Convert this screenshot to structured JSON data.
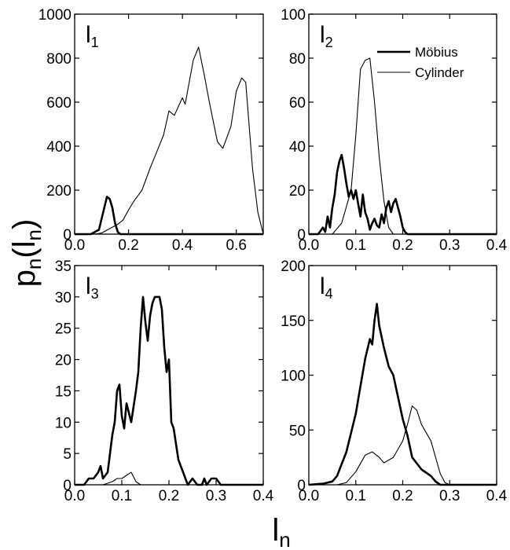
{
  "chart_data": [
    {
      "type": "line",
      "panel": "I1",
      "label_main": "l",
      "label_sub": "1",
      "xlim": [
        0.0,
        0.7
      ],
      "ylim": [
        0,
        1000
      ],
      "xticks": [
        "0.0",
        "0.2",
        "0.4",
        "0.6"
      ],
      "xtick_values": [
        0.0,
        0.2,
        0.4,
        0.6
      ],
      "yticks": [
        "0",
        "200",
        "400",
        "600",
        "800",
        "1000"
      ],
      "ytick_values": [
        0,
        200,
        400,
        600,
        800,
        1000
      ],
      "series": [
        {
          "name": "Möbius",
          "points": [
            [
              0,
              0
            ],
            [
              0.06,
              0
            ],
            [
              0.09,
              20
            ],
            [
              0.11,
              120
            ],
            [
              0.12,
              170
            ],
            [
              0.13,
              160
            ],
            [
              0.14,
              120
            ],
            [
              0.15,
              50
            ],
            [
              0.16,
              10
            ],
            [
              0.17,
              0
            ],
            [
              0.7,
              0
            ]
          ]
        },
        {
          "name": "Cylinder",
          "points": [
            [
              0,
              0
            ],
            [
              0.07,
              0
            ],
            [
              0.1,
              5
            ],
            [
              0.13,
              25
            ],
            [
              0.16,
              45
            ],
            [
              0.18,
              65
            ],
            [
              0.2,
              110
            ],
            [
              0.22,
              150
            ],
            [
              0.25,
              200
            ],
            [
              0.28,
              300
            ],
            [
              0.3,
              360
            ],
            [
              0.33,
              450
            ],
            [
              0.35,
              560
            ],
            [
              0.37,
              540
            ],
            [
              0.4,
              620
            ],
            [
              0.41,
              590
            ],
            [
              0.44,
              790
            ],
            [
              0.46,
              850
            ],
            [
              0.48,
              730
            ],
            [
              0.5,
              600
            ],
            [
              0.53,
              420
            ],
            [
              0.55,
              390
            ],
            [
              0.58,
              490
            ],
            [
              0.6,
              650
            ],
            [
              0.62,
              710
            ],
            [
              0.635,
              690
            ],
            [
              0.66,
              300
            ],
            [
              0.68,
              100
            ],
            [
              0.7,
              0
            ]
          ]
        }
      ]
    },
    {
      "type": "line",
      "panel": "I2",
      "label_main": "l",
      "label_sub": "2",
      "xlim": [
        0.0,
        0.4
      ],
      "ylim": [
        0,
        100
      ],
      "xticks": [
        "0.0",
        "0.1",
        "0.2",
        "0.3",
        "0.4"
      ],
      "xtick_values": [
        0.0,
        0.1,
        0.2,
        0.3,
        0.4
      ],
      "yticks": [
        "0",
        "20",
        "40",
        "60",
        "80",
        "100"
      ],
      "ytick_values": [
        0,
        20,
        40,
        60,
        80,
        100
      ],
      "legend": [
        {
          "label": "Möbius",
          "weight": "thick"
        },
        {
          "label": "Cylinder",
          "weight": "thin"
        }
      ],
      "series": [
        {
          "name": "Möbius",
          "points": [
            [
              0,
              0
            ],
            [
              0.02,
              0
            ],
            [
              0.03,
              3
            ],
            [
              0.035,
              1
            ],
            [
              0.04,
              8
            ],
            [
              0.045,
              3
            ],
            [
              0.05,
              12
            ],
            [
              0.055,
              18
            ],
            [
              0.06,
              28
            ],
            [
              0.065,
              33
            ],
            [
              0.07,
              36
            ],
            [
              0.075,
              30
            ],
            [
              0.08,
              23
            ],
            [
              0.085,
              17
            ],
            [
              0.09,
              20
            ],
            [
              0.095,
              16
            ],
            [
              0.1,
              20
            ],
            [
              0.105,
              14
            ],
            [
              0.11,
              8
            ],
            [
              0.115,
              18
            ],
            [
              0.12,
              10
            ],
            [
              0.125,
              7
            ],
            [
              0.13,
              2
            ],
            [
              0.135,
              5
            ],
            [
              0.14,
              7
            ],
            [
              0.145,
              4
            ],
            [
              0.15,
              3
            ],
            [
              0.155,
              9
            ],
            [
              0.16,
              5
            ],
            [
              0.165,
              12
            ],
            [
              0.17,
              15
            ],
            [
              0.175,
              10
            ],
            [
              0.18,
              14
            ],
            [
              0.185,
              16
            ],
            [
              0.19,
              12
            ],
            [
              0.195,
              8
            ],
            [
              0.2,
              3
            ],
            [
              0.205,
              1
            ],
            [
              0.21,
              0
            ],
            [
              0.4,
              0
            ]
          ]
        },
        {
          "name": "Cylinder",
          "points": [
            [
              0,
              0
            ],
            [
              0.05,
              0
            ],
            [
              0.07,
              5
            ],
            [
              0.09,
              20
            ],
            [
              0.1,
              45
            ],
            [
              0.11,
              75
            ],
            [
              0.12,
              79
            ],
            [
              0.13,
              80
            ],
            [
              0.14,
              60
            ],
            [
              0.15,
              35
            ],
            [
              0.16,
              15
            ],
            [
              0.17,
              3
            ],
            [
              0.18,
              0
            ],
            [
              0.4,
              0
            ]
          ]
        }
      ]
    },
    {
      "type": "line",
      "panel": "I3",
      "label_main": "l",
      "label_sub": "3",
      "xlim": [
        0.0,
        0.4
      ],
      "ylim": [
        0,
        35
      ],
      "xticks": [
        "0.0",
        "0.1",
        "0.2",
        "0.3",
        "0.4"
      ],
      "xtick_values": [
        0.0,
        0.1,
        0.2,
        0.3,
        0.4
      ],
      "yticks": [
        "0",
        "5",
        "10",
        "15",
        "20",
        "25",
        "30",
        "35"
      ],
      "ytick_values": [
        0,
        5,
        10,
        15,
        20,
        25,
        30,
        35
      ],
      "series": [
        {
          "name": "Möbius",
          "points": [
            [
              0,
              0
            ],
            [
              0.02,
              0
            ],
            [
              0.03,
              1
            ],
            [
              0.04,
              1
            ],
            [
              0.05,
              2
            ],
            [
              0.055,
              3
            ],
            [
              0.06,
              1
            ],
            [
              0.07,
              2
            ],
            [
              0.075,
              5
            ],
            [
              0.08,
              8
            ],
            [
              0.085,
              10
            ],
            [
              0.09,
              15
            ],
            [
              0.095,
              16
            ],
            [
              0.1,
              11
            ],
            [
              0.105,
              9
            ],
            [
              0.11,
              13
            ],
            [
              0.12,
              10
            ],
            [
              0.13,
              15
            ],
            [
              0.135,
              18
            ],
            [
              0.14,
              25
            ],
            [
              0.145,
              30
            ],
            [
              0.15,
              26
            ],
            [
              0.155,
              23
            ],
            [
              0.16,
              27
            ],
            [
              0.165,
              29
            ],
            [
              0.17,
              30
            ],
            [
              0.18,
              30
            ],
            [
              0.185,
              28
            ],
            [
              0.19,
              22
            ],
            [
              0.195,
              18
            ],
            [
              0.2,
              20
            ],
            [
              0.205,
              10
            ],
            [
              0.21,
              9
            ],
            [
              0.22,
              4
            ],
            [
              0.23,
              2
            ],
            [
              0.24,
              0
            ],
            [
              0.25,
              1
            ],
            [
              0.26,
              0
            ],
            [
              0.27,
              0
            ],
            [
              0.275,
              1
            ],
            [
              0.28,
              0
            ],
            [
              0.29,
              1
            ],
            [
              0.3,
              1
            ],
            [
              0.31,
              0
            ],
            [
              0.4,
              0
            ]
          ]
        },
        {
          "name": "Cylinder",
          "points": [
            [
              0,
              0
            ],
            [
              0.06,
              0
            ],
            [
              0.08,
              0.5
            ],
            [
              0.09,
              1
            ],
            [
              0.1,
              1
            ],
            [
              0.11,
              1.5
            ],
            [
              0.12,
              2
            ],
            [
              0.13,
              0.5
            ],
            [
              0.14,
              0
            ],
            [
              0.4,
              0
            ]
          ]
        }
      ]
    },
    {
      "type": "line",
      "panel": "I4",
      "label_main": "l",
      "label_sub": "4",
      "xlim": [
        0.0,
        0.4
      ],
      "ylim": [
        0,
        200
      ],
      "xticks": [
        "0.0",
        "0.1",
        "0.2",
        "0.3",
        "0.4"
      ],
      "xtick_values": [
        0.0,
        0.1,
        0.2,
        0.3,
        0.4
      ],
      "yticks": [
        "0",
        "50",
        "100",
        "150",
        "200"
      ],
      "ytick_values": [
        0,
        50,
        100,
        150,
        200
      ],
      "series": [
        {
          "name": "Möbius",
          "points": [
            [
              0,
              0
            ],
            [
              0.03,
              1
            ],
            [
              0.05,
              3
            ],
            [
              0.06,
              8
            ],
            [
              0.08,
              30
            ],
            [
              0.1,
              65
            ],
            [
              0.11,
              90
            ],
            [
              0.12,
              115
            ],
            [
              0.13,
              133
            ],
            [
              0.135,
              128
            ],
            [
              0.14,
              150
            ],
            [
              0.145,
              165
            ],
            [
              0.15,
              145
            ],
            [
              0.16,
              125
            ],
            [
              0.17,
              108
            ],
            [
              0.18,
              100
            ],
            [
              0.19,
              80
            ],
            [
              0.2,
              60
            ],
            [
              0.21,
              45
            ],
            [
              0.22,
              25
            ],
            [
              0.24,
              14
            ],
            [
              0.26,
              8
            ],
            [
              0.27,
              3
            ],
            [
              0.28,
              0
            ],
            [
              0.4,
              0
            ]
          ]
        },
        {
          "name": "Cylinder",
          "points": [
            [
              0,
              0
            ],
            [
              0.06,
              0
            ],
            [
              0.08,
              2
            ],
            [
              0.1,
              12
            ],
            [
              0.12,
              27
            ],
            [
              0.135,
              30
            ],
            [
              0.15,
              25
            ],
            [
              0.16,
              20
            ],
            [
              0.18,
              25
            ],
            [
              0.2,
              40
            ],
            [
              0.21,
              55
            ],
            [
              0.22,
              72
            ],
            [
              0.23,
              68
            ],
            [
              0.24,
              55
            ],
            [
              0.26,
              40
            ],
            [
              0.27,
              25
            ],
            [
              0.28,
              10
            ],
            [
              0.29,
              2
            ],
            [
              0.3,
              0
            ],
            [
              0.4,
              0
            ]
          ]
        }
      ]
    }
  ],
  "axes": {
    "y_label_main": "p",
    "y_label_sub": "n",
    "y_label_open": "(l",
    "y_label_inner_sub": "n",
    "y_label_close": ")",
    "x_label_main": "l",
    "x_label_sub": "n"
  }
}
